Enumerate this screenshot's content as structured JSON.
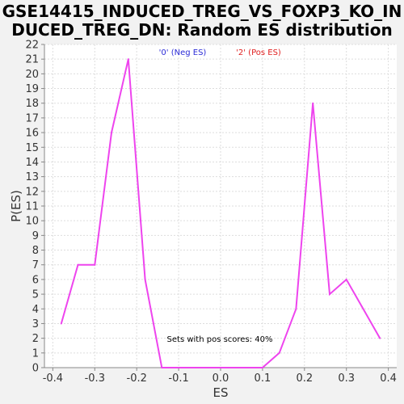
{
  "chart_data": {
    "type": "line",
    "title_line1": "GSE14415_INDUCED_TREG_VS_FOXP3_KO_IN",
    "title_line2": "DUCED_TREG_DN: Random ES distribution",
    "xlabel": "ES",
    "ylabel": "P(ES)",
    "xlim": [
      -0.42,
      0.42
    ],
    "ylim": [
      0,
      22
    ],
    "xticks": [
      -0.4,
      -0.3,
      -0.2,
      -0.1,
      0.0,
      0.1,
      0.2,
      0.3,
      0.4
    ],
    "xtick_labels": [
      "-0.4",
      "-0.3",
      "-0.2",
      "-0.1",
      "0.0",
      "0.1",
      "0.2",
      "0.3",
      "0.4"
    ],
    "yticks": [
      0,
      1,
      2,
      3,
      4,
      5,
      6,
      7,
      8,
      9,
      10,
      11,
      12,
      13,
      14,
      15,
      16,
      17,
      18,
      19,
      20,
      21,
      22
    ],
    "grid": true,
    "legend": [
      {
        "label": "'0' (Neg ES)",
        "color": "#2b2bd6"
      },
      {
        "label": "'2' (Pos ES)",
        "color": "#e02020"
      }
    ],
    "annotation": "Sets with pos scores: 40%",
    "series": [
      {
        "color": "#ee44ee",
        "x": [
          -0.38,
          -0.34,
          -0.3,
          -0.26,
          -0.22,
          -0.18,
          -0.14,
          -0.1,
          -0.06,
          -0.02,
          0.02,
          0.06,
          0.1,
          0.14,
          0.18,
          0.22,
          0.26,
          0.3,
          0.34,
          0.38
        ],
        "y": [
          3,
          7,
          7,
          16,
          21,
          6,
          0,
          0,
          0,
          0,
          0,
          0,
          0,
          1,
          4,
          18,
          5,
          6,
          4,
          2
        ]
      }
    ]
  }
}
